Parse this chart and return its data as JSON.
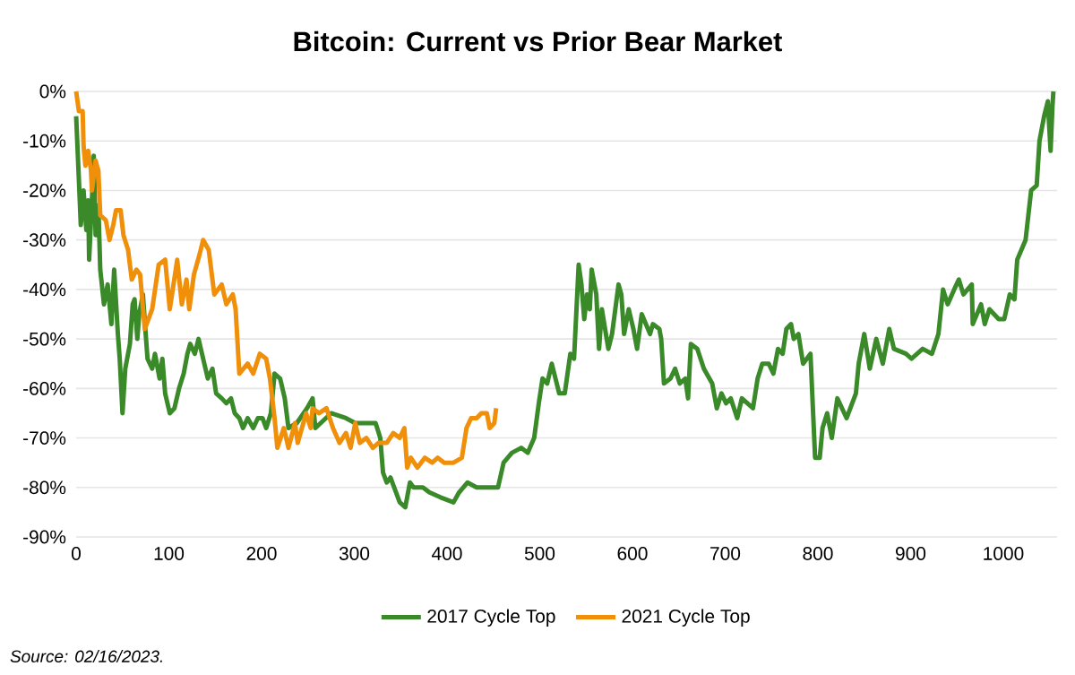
{
  "chart_data": {
    "type": "line",
    "title": "Bitcoin: Current vs Prior Bear Market",
    "annotations": [
      "Source: 02/16/2023."
    ],
    "xlim": [
      0,
      1058
    ],
    "xticks": [
      0,
      100,
      200,
      300,
      400,
      500,
      600,
      700,
      800,
      900,
      1000
    ],
    "ylim": [
      -90,
      0
    ],
    "yticks": [
      {
        "value": 0,
        "label": "0%"
      },
      {
        "value": -10,
        "label": "-10%"
      },
      {
        "value": -20,
        "label": "-20%"
      },
      {
        "value": -30,
        "label": "-30%"
      },
      {
        "value": -40,
        "label": "-40%"
      },
      {
        "value": -50,
        "label": "-50%"
      },
      {
        "value": -60,
        "label": "-60%"
      },
      {
        "value": -70,
        "label": "-70%"
      },
      {
        "value": -80,
        "label": "-80%"
      },
      {
        "value": -90,
        "label": "-90%"
      }
    ],
    "grid": "y",
    "legend": "bottom",
    "marker": "none",
    "line_style": "solid",
    "series": [
      {
        "name": "2017 Cycle Top",
        "color": "#3a8a2a",
        "x": [
          0,
          3,
          5,
          8,
          11,
          13,
          14,
          18,
          19,
          21,
          24,
          26,
          30,
          34,
          38,
          41,
          45,
          47,
          50,
          53,
          58,
          61,
          63,
          66,
          68,
          72,
          75,
          77,
          82,
          85,
          90,
          93,
          96,
          101,
          106,
          111,
          116,
          120,
          123,
          128,
          132,
          137,
          142,
          147,
          151,
          157,
          162,
          167,
          171,
          176,
          180,
          185,
          191,
          196,
          201,
          205,
          210,
          214,
          220,
          225,
          229,
          238,
          249,
          255,
          258,
          275,
          291,
          301,
          316,
          323,
          328,
          331,
          335,
          339,
          349,
          355,
          360,
          364,
          374,
          381,
          393,
          407,
          413,
          422,
          432,
          445,
          455,
          461,
          470,
          480,
          487,
          494,
          499,
          503,
          508,
          513,
          521,
          527,
          533,
          537,
          542,
          545,
          548,
          551,
          554,
          556,
          561,
          564,
          567,
          574,
          578,
          585,
          588,
          591,
          596,
          601,
          605,
          610,
          619,
          622,
          629,
          631,
          634,
          641,
          646,
          651,
          657,
          660,
          663,
          670,
          677,
          686,
          691,
          696,
          701,
          706,
          713,
          718,
          730,
          735,
          740,
          747,
          752,
          757,
          762,
          766,
          771,
          774,
          779,
          784,
          792,
          797,
          802,
          805,
          810,
          815,
          821,
          831,
          841,
          844,
          850,
          856,
          863,
          870,
          877,
          882,
          895,
          901,
          913,
          923,
          930,
          935,
          940,
          947,
          952,
          957,
          966,
          967,
          976,
          980,
          985,
          995,
          1001,
          1007,
          1012,
          1015,
          1024,
          1030,
          1036,
          1039,
          1044,
          1048,
          1051,
          1053,
          1054
        ],
        "values": [
          -5,
          -18,
          -27,
          -20,
          -28,
          -22,
          -34,
          -18,
          -13,
          -29,
          -23,
          -36,
          -43,
          -39,
          -47,
          -36,
          -49,
          -54,
          -65,
          -56,
          -51,
          -43,
          -42,
          -50,
          -45,
          -41,
          -49,
          -54,
          -56,
          -53,
          -58,
          -54,
          -61,
          -65,
          -64,
          -60,
          -57,
          -53,
          -51,
          -53,
          -50,
          -54,
          -58,
          -56,
          -61,
          -62,
          -63,
          -62,
          -65,
          -66,
          -68,
          -66,
          -68,
          -66,
          -66,
          -68,
          -65,
          -57,
          -58,
          -62,
          -68,
          -67,
          -64,
          -62,
          -68,
          -65,
          -66,
          -67,
          -67,
          -67,
          -70,
          -77,
          -79,
          -78,
          -83,
          -84,
          -79,
          -80,
          -80,
          -81,
          -82,
          -83,
          -81,
          -79,
          -80,
          -80,
          -80,
          -75,
          -73,
          -72,
          -73,
          -70,
          -63,
          -58,
          -59,
          -55,
          -61,
          -61,
          -53,
          -54,
          -35,
          -39,
          -46,
          -41,
          -44,
          -36,
          -41,
          -52,
          -44,
          -52,
          -49,
          -39,
          -41,
          -49,
          -44,
          -48,
          -52,
          -45,
          -49,
          -47,
          -48,
          -50,
          -59,
          -58,
          -56,
          -59,
          -58,
          -62,
          -51,
          -52,
          -56,
          -59,
          -64,
          -61,
          -63,
          -62,
          -66,
          -62,
          -64,
          -58,
          -55,
          -55,
          -57,
          -52,
          -53,
          -48,
          -47,
          -50,
          -49,
          -55,
          -53,
          -74,
          -74,
          -68,
          -65,
          -70,
          -62,
          -66,
          -61,
          -55,
          -49,
          -56,
          -50,
          -55,
          -48,
          -52,
          -53,
          -54,
          -52,
          -53,
          -49,
          -40,
          -43,
          -40,
          -38,
          -41,
          -39,
          -47,
          -43,
          -47,
          -44,
          -46,
          -46,
          -41,
          -42,
          -34,
          -30,
          -20,
          -19,
          -10,
          -5,
          -2,
          -12,
          -3,
          0
        ]
      },
      {
        "name": "2021 Cycle Top",
        "color": "#f0900a",
        "x": [
          0,
          3,
          7,
          8,
          10,
          13,
          16,
          17,
          21,
          24,
          26,
          32,
          36,
          40,
          43,
          48,
          51,
          56,
          60,
          65,
          69,
          74,
          82,
          89,
          96,
          101,
          109,
          114,
          119,
          122,
          127,
          133,
          137,
          143,
          149,
          157,
          162,
          169,
          172,
          176,
          185,
          191,
          198,
          205,
          209,
          214,
          217,
          224,
          229,
          236,
          239,
          248,
          253,
          255,
          262,
          270,
          277,
          284,
          291,
          296,
          301,
          306,
          313,
          320,
          326,
          335,
          342,
          349,
          354,
          357,
          361,
          368,
          376,
          384,
          390,
          397,
          407,
          416,
          421,
          426,
          432,
          437,
          443,
          446,
          451,
          453
        ],
        "values": [
          0,
          -4,
          -4,
          -11,
          -15,
          -12,
          -16,
          -20,
          -14,
          -16,
          -25,
          -26,
          -30,
          -27,
          -24,
          -24,
          -29,
          -32,
          -38,
          -36,
          -37,
          -48,
          -44,
          -35,
          -34,
          -44,
          -34,
          -43,
          -38,
          -44,
          -37,
          -33,
          -30,
          -32,
          -41,
          -39,
          -43,
          -41,
          -44,
          -57,
          -55,
          -57,
          -53,
          -54,
          -58,
          -66,
          -72,
          -68,
          -72,
          -67,
          -71,
          -65,
          -68,
          -64,
          -65,
          -64,
          -68,
          -71,
          -69,
          -72,
          -67,
          -71,
          -70,
          -72,
          -71,
          -71,
          -69,
          -70,
          -68,
          -76,
          -74,
          -76,
          -74,
          -75,
          -74,
          -75,
          -75,
          -74,
          -68,
          -66,
          -66,
          -65,
          -65,
          -68,
          -67,
          -64
        ]
      }
    ]
  }
}
